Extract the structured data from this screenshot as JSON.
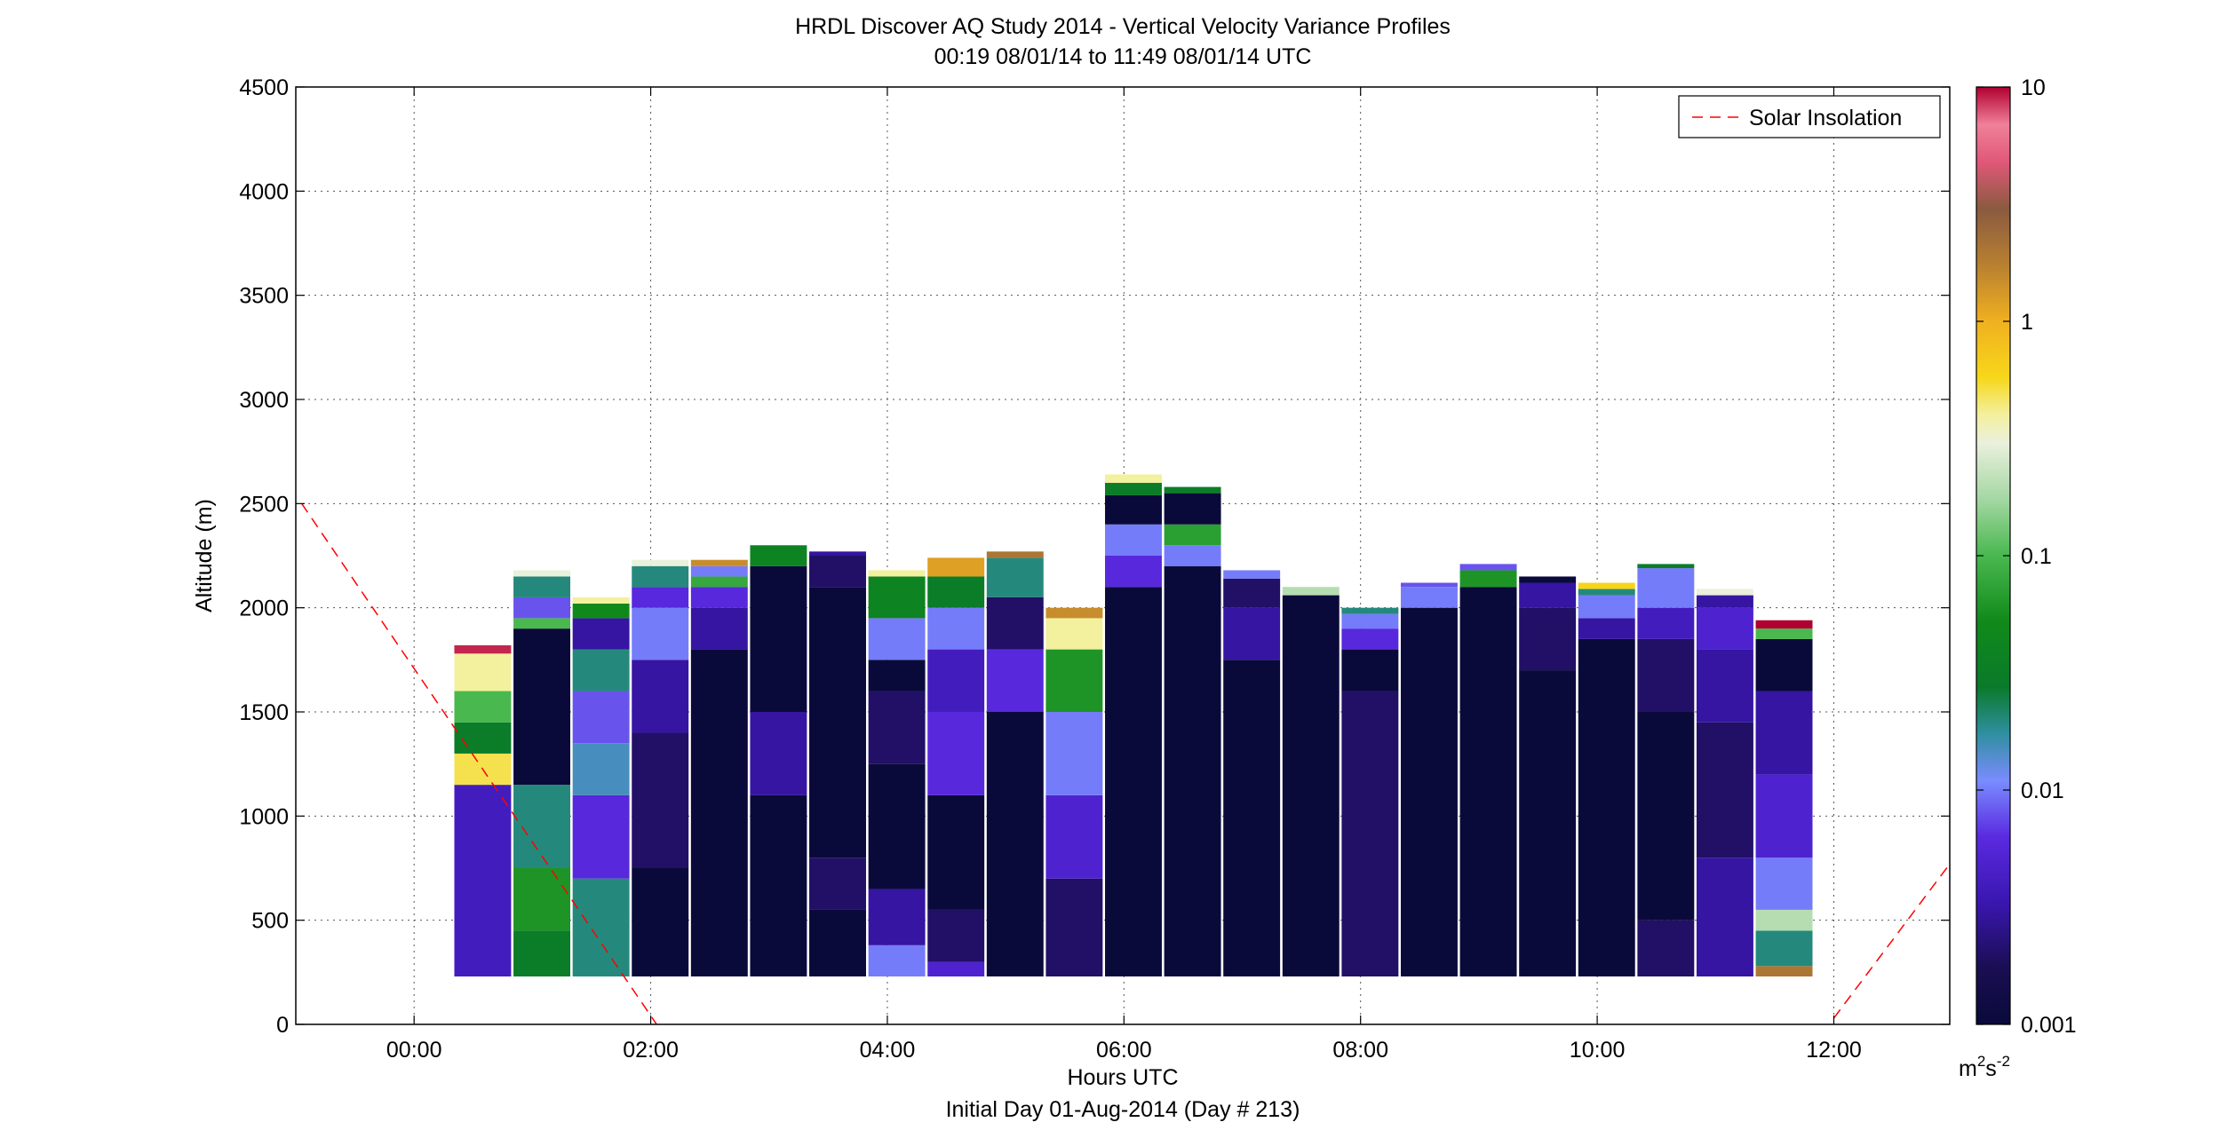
{
  "chart_data": {
    "type": "heatmap",
    "title": "HRDL Discover AQ Study 2014 - Vertical Velocity Variance Profiles",
    "subtitle": "00:19 08/01/14 to 11:49 08/01/14  UTC",
    "xlabel": "Hours UTC",
    "footnote": "Initial Day 01-Aug-2014 (Day # 213)",
    "ylabel": "Altitude (m)",
    "xlim": [
      -1.0,
      12.98
    ],
    "ylim": [
      0,
      4500
    ],
    "x_ticks": [
      0,
      2,
      4,
      6,
      8,
      10,
      12
    ],
    "x_tick_labels": [
      "00:00",
      "02:00",
      "04:00",
      "06:00",
      "08:00",
      "10:00",
      "12:00"
    ],
    "y_ticks": [
      0,
      500,
      1000,
      1500,
      2000,
      2500,
      3000,
      3500,
      4000,
      4500
    ],
    "y_tick_labels": [
      "0",
      "500",
      "1000",
      "1500",
      "2000",
      "2500",
      "3000",
      "3500",
      "4000",
      "4500"
    ],
    "grid": true,
    "legend": {
      "entries": [
        "Solar Insolation"
      ],
      "placement": "top-right"
    },
    "colorbar": {
      "scale": "log",
      "range": [
        0.001,
        10
      ],
      "tick_values": [
        0.001,
        0.01,
        0.1,
        1,
        10
      ],
      "tick_labels": [
        "0.001",
        "0.01",
        "0.1",
        "1",
        "10"
      ],
      "units": "m2s-2",
      "unit_base": "m",
      "unit_exp1": "2",
      "unit_mid": "s",
      "unit_exp2": "-2"
    },
    "solar_insolation_line": {
      "color": "#ff0000",
      "style": "dashed",
      "segments": [
        {
          "x": [
            -0.95,
            2.05
          ],
          "y": [
            2500,
            0
          ]
        },
        {
          "x": [
            12.0,
            12.98
          ],
          "y": [
            30,
            770
          ]
        }
      ]
    },
    "min_altitude": 230,
    "profile_width_hours": 0.48,
    "profiles": [
      {
        "time": 0.58,
        "top": 1820,
        "segments": [
          [
            230,
            0.004
          ],
          [
            1150,
            0.5
          ],
          [
            1300,
            0.03
          ],
          [
            1450,
            0.1
          ],
          [
            1600,
            0.4
          ],
          [
            1780,
            9
          ]
        ]
      },
      {
        "time": 1.08,
        "top": 2180,
        "segments": [
          [
            230,
            0.03
          ],
          [
            450,
            0.06
          ],
          [
            750,
            0.02
          ],
          [
            1150,
            0.001
          ],
          [
            1900,
            0.1
          ],
          [
            1950,
            0.008
          ],
          [
            2050,
            0.02
          ],
          [
            2150,
            0.3
          ]
        ]
      },
      {
        "time": 1.58,
        "top": 2050,
        "segments": [
          [
            230,
            0.02
          ],
          [
            700,
            0.006
          ],
          [
            1100,
            0.015
          ],
          [
            1350,
            0.008
          ],
          [
            1600,
            0.02
          ],
          [
            1800,
            0.003
          ],
          [
            1950,
            0.05
          ],
          [
            2020,
            0.4
          ]
        ]
      },
      {
        "time": 2.08,
        "top": 2230,
        "segments": [
          [
            230,
            0.001
          ],
          [
            750,
            0.002
          ],
          [
            1400,
            0.003
          ],
          [
            1750,
            0.01
          ],
          [
            2000,
            0.006
          ],
          [
            2100,
            0.02
          ],
          [
            2200,
            0.3
          ]
        ]
      },
      {
        "time": 2.58,
        "top": 2230,
        "segments": [
          [
            230,
            0.001
          ],
          [
            1800,
            0.003
          ],
          [
            2000,
            0.006
          ],
          [
            2100,
            0.08
          ],
          [
            2150,
            0.01
          ],
          [
            2200,
            1.5
          ]
        ]
      },
      {
        "time": 3.08,
        "top": 2300,
        "segments": [
          [
            230,
            0.001
          ],
          [
            1100,
            0.003
          ],
          [
            1500,
            0.001
          ],
          [
            2200,
            0.04
          ]
        ]
      },
      {
        "time": 3.58,
        "top": 2270,
        "segments": [
          [
            230,
            0.001
          ],
          [
            550,
            0.002
          ],
          [
            800,
            0.001
          ],
          [
            2100,
            0.002
          ],
          [
            2250,
            0.003
          ]
        ]
      },
      {
        "time": 4.08,
        "top": 2180,
        "segments": [
          [
            230,
            0.01
          ],
          [
            380,
            0.003
          ],
          [
            650,
            0.001
          ],
          [
            1250,
            0.002
          ],
          [
            1600,
            0.001
          ],
          [
            1750,
            0.01
          ],
          [
            1950,
            0.04
          ],
          [
            2150,
            0.4
          ]
        ]
      },
      {
        "time": 4.58,
        "top": 2240,
        "segments": [
          [
            230,
            0.005
          ],
          [
            300,
            0.002
          ],
          [
            550,
            0.001
          ],
          [
            1100,
            0.006
          ],
          [
            1500,
            0.004
          ],
          [
            1800,
            0.01
          ],
          [
            2000,
            0.03
          ],
          [
            2150,
            1.2
          ]
        ]
      },
      {
        "time": 5.08,
        "top": 2270,
        "segments": [
          [
            230,
            0.001
          ],
          [
            1500,
            0.006
          ],
          [
            1800,
            0.002
          ],
          [
            2050,
            0.02
          ],
          [
            2240,
            2
          ]
        ]
      },
      {
        "time": 5.58,
        "top": 2000,
        "segments": [
          [
            230,
            0.002
          ],
          [
            700,
            0.005
          ],
          [
            1100,
            0.01
          ],
          [
            1500,
            0.06
          ],
          [
            1800,
            0.4
          ],
          [
            1950,
            1.5
          ]
        ]
      },
      {
        "time": 6.08,
        "top": 2640,
        "segments": [
          [
            230,
            0.001
          ],
          [
            2100,
            0.006
          ],
          [
            2250,
            0.01
          ],
          [
            2400,
            0.001
          ],
          [
            2540,
            0.03
          ],
          [
            2600,
            0.4
          ]
        ]
      },
      {
        "time": 6.58,
        "top": 2580,
        "segments": [
          [
            230,
            0.001
          ],
          [
            2200,
            0.01
          ],
          [
            2300,
            0.07
          ],
          [
            2400,
            0.001
          ],
          [
            2550,
            0.03
          ]
        ]
      },
      {
        "time": 7.08,
        "top": 2180,
        "segments": [
          [
            230,
            0.001
          ],
          [
            1750,
            0.003
          ],
          [
            2000,
            0.002
          ],
          [
            2140,
            0.01
          ]
        ]
      },
      {
        "time": 7.58,
        "top": 2100,
        "segments": [
          [
            230,
            0.001
          ],
          [
            2060,
            0.2
          ]
        ]
      },
      {
        "time": 8.08,
        "top": 2000,
        "segments": [
          [
            230,
            0.002
          ],
          [
            1600,
            0.001
          ],
          [
            1800,
            0.006
          ],
          [
            1900,
            0.01
          ],
          [
            1970,
            0.02
          ]
        ]
      },
      {
        "time": 8.58,
        "top": 2120,
        "segments": [
          [
            230,
            0.001
          ],
          [
            2000,
            0.01
          ],
          [
            2100,
            0.008
          ]
        ]
      },
      {
        "time": 9.08,
        "top": 2210,
        "segments": [
          [
            230,
            0.001
          ],
          [
            2100,
            0.06
          ],
          [
            2180,
            0.008
          ]
        ]
      },
      {
        "time": 9.58,
        "top": 2150,
        "segments": [
          [
            230,
            0.001
          ],
          [
            1700,
            0.002
          ],
          [
            2000,
            0.003
          ],
          [
            2120,
            0.001
          ]
        ]
      },
      {
        "time": 10.08,
        "top": 2120,
        "segments": [
          [
            230,
            0.001
          ],
          [
            1850,
            0.003
          ],
          [
            1950,
            0.01
          ],
          [
            2060,
            0.02
          ],
          [
            2090,
            0.6
          ]
        ]
      },
      {
        "time": 10.58,
        "top": 2210,
        "segments": [
          [
            230,
            0.002
          ],
          [
            500,
            0.001
          ],
          [
            1500,
            0.002
          ],
          [
            1850,
            0.004
          ],
          [
            2000,
            0.01
          ],
          [
            2190,
            0.03
          ]
        ]
      },
      {
        "time": 11.08,
        "top": 2090,
        "segments": [
          [
            230,
            0.003
          ],
          [
            800,
            0.002
          ],
          [
            1450,
            0.003
          ],
          [
            1800,
            0.005
          ],
          [
            2000,
            0.003
          ],
          [
            2060,
            0.3
          ]
        ]
      },
      {
        "time": 11.58,
        "top": 1940,
        "segments": [
          [
            230,
            2
          ],
          [
            280,
            0.02
          ],
          [
            450,
            0.2
          ],
          [
            550,
            0.01
          ],
          [
            800,
            0.005
          ],
          [
            1200,
            0.003
          ],
          [
            1600,
            0.001
          ],
          [
            1850,
            0.1
          ],
          [
            1900,
            10
          ]
        ]
      }
    ],
    "colormap_stops": [
      [
        0.0,
        "#0a0a3a"
      ],
      [
        0.06,
        "#1a0e52"
      ],
      [
        0.13,
        "#3a16b0"
      ],
      [
        0.2,
        "#5a2ae0"
      ],
      [
        0.26,
        "#7a8cff"
      ],
      [
        0.31,
        "#2f8fa0"
      ],
      [
        0.36,
        "#0a7a2a"
      ],
      [
        0.43,
        "#118a1a"
      ],
      [
        0.5,
        "#49b84f"
      ],
      [
        0.56,
        "#a4d7a3"
      ],
      [
        0.62,
        "#eaf0dc"
      ],
      [
        0.65,
        "#f3f0a0"
      ],
      [
        0.69,
        "#f7d71a"
      ],
      [
        0.75,
        "#f0b020"
      ],
      [
        0.81,
        "#b88030"
      ],
      [
        0.87,
        "#8a5a40"
      ],
      [
        0.92,
        "#e05878"
      ],
      [
        0.96,
        "#f08099"
      ],
      [
        1.0,
        "#b00030"
      ]
    ]
  }
}
